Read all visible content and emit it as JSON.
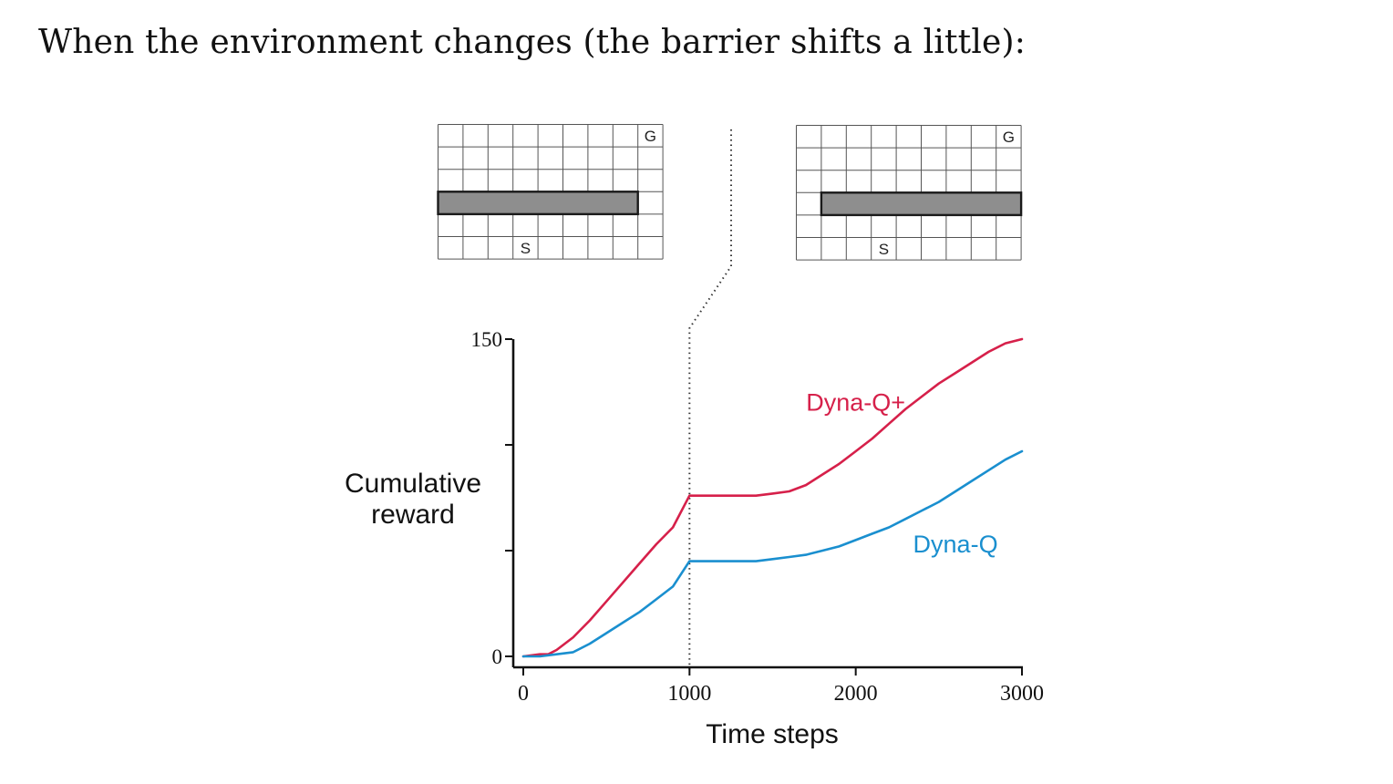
{
  "slide": {
    "heading": "When the environment changes (the barrier shifts a little):"
  },
  "grids": [
    {
      "cols": 9,
      "rows": 6,
      "goal_label": "G",
      "start_label": "S",
      "goal_cell": [
        8,
        0
      ],
      "start_cell": [
        3,
        5
      ],
      "barrier_row": 3,
      "barrier_cols": [
        0,
        7
      ]
    },
    {
      "cols": 9,
      "rows": 6,
      "goal_label": "G",
      "start_label": "S",
      "goal_cell": [
        8,
        0
      ],
      "start_cell": [
        3,
        5
      ],
      "barrier_row": 3,
      "barrier_cols": [
        1,
        8
      ]
    }
  ],
  "chart_data": {
    "type": "line",
    "xlabel": "Time steps",
    "ylabel": "Cumulative reward",
    "ylabel_lines": [
      "Cumulative",
      "reward"
    ],
    "xlim": [
      0,
      3000
    ],
    "ylim": [
      0,
      150
    ],
    "x_ticks": [
      0,
      1000,
      2000,
      3000
    ],
    "x_tick_labels": [
      "0",
      "1000",
      "2000",
      "3000"
    ],
    "y_ticks": [
      0,
      50,
      100,
      150
    ],
    "y_tick_labels": [
      "0",
      "",
      "",
      "150"
    ],
    "change_point": 1000,
    "series": [
      {
        "name": "Dyna-Q+",
        "color": "#d6204a",
        "x": [
          0,
          100,
          150,
          200,
          300,
          400,
          500,
          600,
          700,
          800,
          900,
          1000,
          1100,
          1200,
          1300,
          1400,
          1500,
          1600,
          1700,
          1800,
          1900,
          2000,
          2100,
          2200,
          2300,
          2400,
          2500,
          2600,
          2700,
          2800,
          2900,
          3000
        ],
        "y": [
          0,
          1,
          1,
          3,
          9,
          17,
          26,
          35,
          44,
          53,
          61,
          76,
          76,
          76,
          76,
          76,
          77,
          78,
          81,
          86,
          91,
          97,
          103,
          110,
          117,
          123,
          129,
          134,
          139,
          144,
          148,
          150
        ]
      },
      {
        "name": "Dyna-Q",
        "color": "#1a8fcf",
        "x": [
          0,
          100,
          200,
          300,
          400,
          500,
          600,
          700,
          800,
          900,
          1000,
          1100,
          1200,
          1300,
          1400,
          1500,
          1600,
          1700,
          1800,
          1900,
          2000,
          2100,
          2200,
          2300,
          2400,
          2500,
          2600,
          2700,
          2800,
          2900,
          3000
        ],
        "y": [
          0,
          0,
          1,
          2,
          6,
          11,
          16,
          21,
          27,
          33,
          45,
          45,
          45,
          45,
          45,
          46,
          47,
          48,
          50,
          52,
          55,
          58,
          61,
          65,
          69,
          73,
          78,
          83,
          88,
          93,
          97
        ]
      }
    ],
    "annotations": [
      {
        "text": "Dyna-Q+",
        "color": "#d6204a",
        "x": 2000,
        "y": 120
      },
      {
        "text": "Dyna-Q",
        "color": "#1a8fcf",
        "x": 2600,
        "y": 53
      }
    ]
  }
}
